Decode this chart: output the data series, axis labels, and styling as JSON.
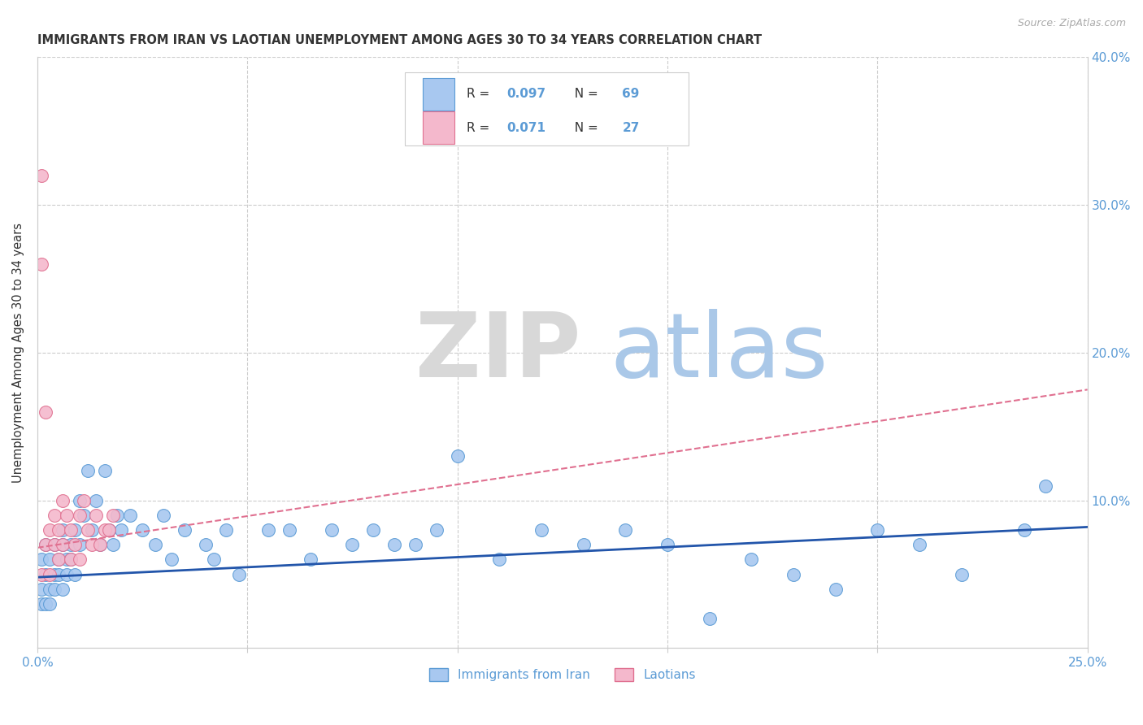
{
  "title": "IMMIGRANTS FROM IRAN VS LAOTIAN UNEMPLOYMENT AMONG AGES 30 TO 34 YEARS CORRELATION CHART",
  "source": "Source: ZipAtlas.com",
  "ylabel": "Unemployment Among Ages 30 to 34 years",
  "xlim": [
    0,
    0.25
  ],
  "ylim": [
    0,
    0.4
  ],
  "legend_r1": "0.097",
  "legend_n1": "69",
  "legend_r2": "0.071",
  "legend_n2": "27",
  "legend_label1": "Immigrants from Iran",
  "legend_label2": "Laotians",
  "blue_fill": "#a8c8f0",
  "blue_edge": "#5b9bd5",
  "pink_fill": "#f4b8cc",
  "pink_edge": "#e07090",
  "trend_blue_color": "#2255aa",
  "trend_pink_color": "#e07090",
  "axis_label_color": "#5b9bd5",
  "title_color": "#333333",
  "grid_color": "#cccccc",
  "watermark_zip_color": "#d8d8d8",
  "watermark_atlas_color": "#aac8e8",
  "blue_x": [
    0.001,
    0.001,
    0.001,
    0.002,
    0.002,
    0.002,
    0.003,
    0.003,
    0.003,
    0.004,
    0.004,
    0.004,
    0.005,
    0.005,
    0.006,
    0.006,
    0.006,
    0.007,
    0.007,
    0.008,
    0.008,
    0.009,
    0.009,
    0.01,
    0.01,
    0.011,
    0.012,
    0.013,
    0.014,
    0.015,
    0.016,
    0.017,
    0.018,
    0.019,
    0.02,
    0.022,
    0.025,
    0.028,
    0.03,
    0.032,
    0.035,
    0.04,
    0.042,
    0.045,
    0.048,
    0.055,
    0.06,
    0.065,
    0.07,
    0.075,
    0.08,
    0.085,
    0.09,
    0.095,
    0.1,
    0.11,
    0.12,
    0.13,
    0.14,
    0.15,
    0.16,
    0.17,
    0.18,
    0.19,
    0.2,
    0.21,
    0.22,
    0.235,
    0.24
  ],
  "blue_y": [
    0.04,
    0.03,
    0.06,
    0.05,
    0.03,
    0.07,
    0.04,
    0.06,
    0.03,
    0.05,
    0.07,
    0.04,
    0.06,
    0.05,
    0.07,
    0.04,
    0.08,
    0.06,
    0.05,
    0.07,
    0.06,
    0.08,
    0.05,
    0.1,
    0.07,
    0.09,
    0.12,
    0.08,
    0.1,
    0.07,
    0.12,
    0.08,
    0.07,
    0.09,
    0.08,
    0.09,
    0.08,
    0.07,
    0.09,
    0.06,
    0.08,
    0.07,
    0.06,
    0.08,
    0.05,
    0.08,
    0.08,
    0.06,
    0.08,
    0.07,
    0.08,
    0.07,
    0.07,
    0.08,
    0.13,
    0.06,
    0.08,
    0.07,
    0.08,
    0.07,
    0.02,
    0.06,
    0.05,
    0.04,
    0.08,
    0.07,
    0.05,
    0.08,
    0.11
  ],
  "pink_x": [
    0.001,
    0.001,
    0.001,
    0.002,
    0.002,
    0.003,
    0.003,
    0.004,
    0.004,
    0.005,
    0.005,
    0.006,
    0.006,
    0.007,
    0.008,
    0.008,
    0.009,
    0.01,
    0.01,
    0.011,
    0.012,
    0.013,
    0.014,
    0.015,
    0.016,
    0.017,
    0.018
  ],
  "pink_y": [
    0.32,
    0.26,
    0.05,
    0.16,
    0.07,
    0.08,
    0.05,
    0.09,
    0.07,
    0.08,
    0.06,
    0.1,
    0.07,
    0.09,
    0.08,
    0.06,
    0.07,
    0.09,
    0.06,
    0.1,
    0.08,
    0.07,
    0.09,
    0.07,
    0.08,
    0.08,
    0.09
  ],
  "blue_trend_x": [
    0.0,
    0.25
  ],
  "blue_trend_y": [
    0.048,
    0.082
  ],
  "pink_trend_x": [
    0.0,
    0.25
  ],
  "pink_trend_y": [
    0.068,
    0.175
  ]
}
